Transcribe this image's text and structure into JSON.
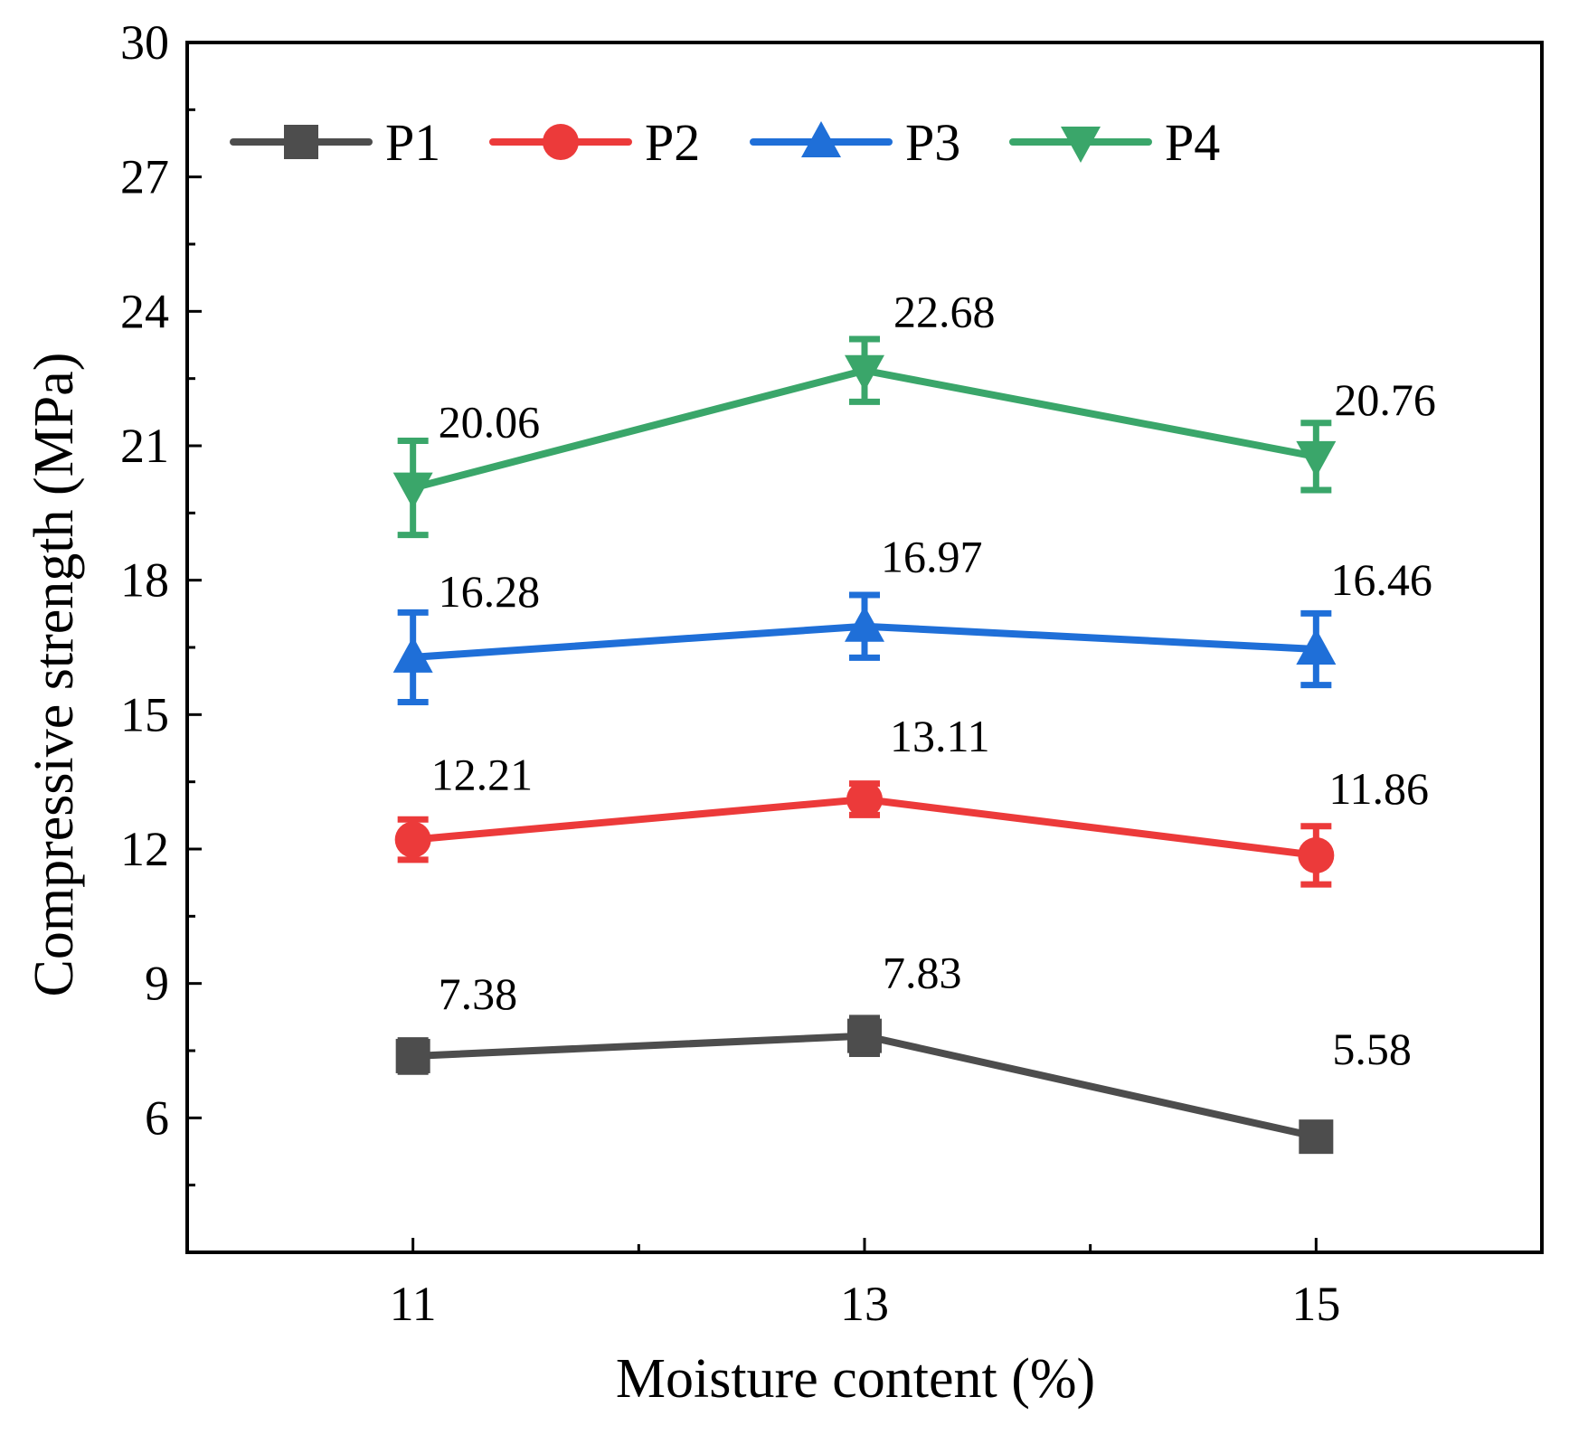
{
  "chart_data": {
    "type": "line",
    "title": "",
    "xlabel": "Moisture content (%)",
    "ylabel": "Compressive strength (MPa)",
    "x": [
      11,
      13,
      15
    ],
    "x_tick_labels": [
      "11",
      "13",
      "15"
    ],
    "xlim": [
      10,
      16
    ],
    "ylim": [
      3.0,
      30
    ],
    "y_ticks": [
      6,
      9,
      12,
      15,
      18,
      21,
      24,
      27,
      30
    ],
    "y_tick_labels": [
      "6",
      "9",
      "12",
      "15",
      "18",
      "21",
      "24",
      "27",
      "30"
    ],
    "grid": false,
    "legend_position": "top",
    "series": [
      {
        "name": "P1",
        "color": "#4d4d4d",
        "marker": "square",
        "values": [
          7.38,
          7.83,
          5.58
        ],
        "labels": [
          "7.38",
          "7.83",
          "5.58"
        ],
        "errors": [
          0.35,
          0.4,
          0.12
        ]
      },
      {
        "name": "P2",
        "color": "#ec3a3a",
        "marker": "circle",
        "values": [
          12.21,
          13.11,
          11.86
        ],
        "labels": [
          "12.21",
          "13.11",
          "11.86"
        ],
        "errors": [
          0.45,
          0.35,
          0.65
        ]
      },
      {
        "name": "P3",
        "color": "#1f6fd8",
        "marker": "triangle-up",
        "values": [
          16.28,
          16.97,
          16.46
        ],
        "labels": [
          "16.28",
          "16.97",
          "16.46"
        ],
        "errors": [
          1.0,
          0.7,
          0.8
        ]
      },
      {
        "name": "P4",
        "color": "#3aa66a",
        "marker": "triangle-down",
        "values": [
          20.06,
          22.68,
          20.76
        ],
        "labels": [
          "20.06",
          "22.68",
          "20.76"
        ],
        "errors": [
          1.05,
          0.7,
          0.75
        ]
      }
    ]
  }
}
